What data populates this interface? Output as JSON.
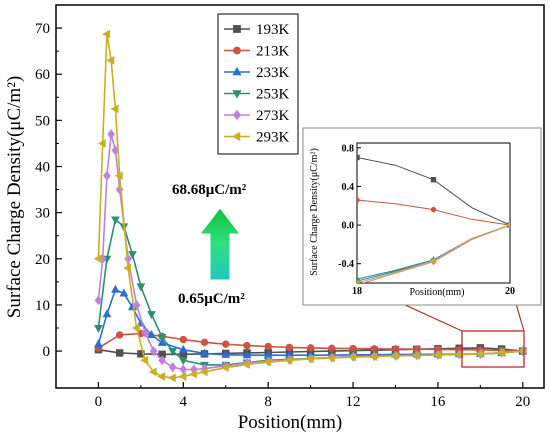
{
  "chart_data": [
    {
      "type": "line",
      "xlabel": "Position(mm)",
      "ylabel": "Surface Charge Density(μC/m²)",
      "xlim": [
        -2,
        21
      ],
      "ylim": [
        -8,
        75
      ],
      "xticks": [
        0,
        4,
        8,
        12,
        16,
        20
      ],
      "yticks": [
        0,
        10,
        20,
        30,
        40,
        50,
        60,
        70
      ],
      "legend_position": "top-center",
      "annotations": {
        "max_label": "68.68μC/m²",
        "min_label": "0.65μC/m²"
      },
      "series": [
        {
          "name": "193K",
          "color": "#505050",
          "marker": "square",
          "x": [
            0,
            1,
            2,
            3,
            4,
            5,
            6,
            7,
            8,
            9,
            10,
            11,
            12,
            13,
            14,
            15,
            16,
            17,
            18,
            19,
            20
          ],
          "y": [
            0.3,
            -0.4,
            -0.6,
            -0.7,
            -0.7,
            -0.6,
            -0.5,
            -0.4,
            -0.3,
            -0.2,
            -0.1,
            0.0,
            0.1,
            0.2,
            0.3,
            0.4,
            0.5,
            0.6,
            0.7,
            0.45,
            0
          ]
        },
        {
          "name": "213K",
          "color": "#cc5540",
          "marker": "circle",
          "x": [
            0,
            1,
            2,
            3,
            4,
            5,
            6,
            7,
            8,
            9,
            10,
            11,
            12,
            13,
            14,
            15,
            16,
            17,
            18,
            19,
            20
          ],
          "y": [
            0.65,
            3.5,
            3.8,
            3.2,
            2.5,
            1.9,
            1.5,
            1.2,
            1.0,
            0.8,
            0.7,
            0.6,
            0.55,
            0.5,
            0.45,
            0.4,
            0.35,
            0.3,
            0.25,
            0.15,
            0
          ]
        },
        {
          "name": "233K",
          "color": "#2a6ed8",
          "marker": "triangle-up",
          "x": [
            0,
            0.4,
            0.8,
            1.2,
            1.6,
            2.0,
            2.5,
            3,
            4,
            5,
            6,
            7,
            8,
            9,
            10,
            11,
            12,
            13,
            14,
            15,
            16,
            17,
            18,
            19,
            20
          ],
          "y": [
            1.5,
            8,
            13.3,
            12.5,
            9.5,
            6,
            3.5,
            1.8,
            0.3,
            -0.5,
            -0.8,
            -0.9,
            -0.9,
            -0.9,
            -0.9,
            -0.9,
            -0.8,
            -0.8,
            -0.75,
            -0.7,
            -0.7,
            -0.65,
            -0.6,
            -0.4,
            0
          ]
        },
        {
          "name": "253K",
          "color": "#2a9070",
          "marker": "triangle-down",
          "x": [
            0,
            0.4,
            0.8,
            1.2,
            1.6,
            2.0,
            2.5,
            3,
            3.5,
            4,
            5,
            6,
            7,
            8,
            9,
            10,
            11,
            12,
            13,
            14,
            15,
            16,
            17,
            18,
            19,
            20
          ],
          "y": [
            5,
            20,
            28.5,
            27,
            21,
            14,
            8,
            3,
            0,
            -2,
            -3,
            -3,
            -2.5,
            -2,
            -1.8,
            -1.6,
            -1.4,
            -1.2,
            -1.1,
            -1,
            -0.9,
            -0.8,
            -0.75,
            -0.65,
            -0.4,
            0
          ]
        },
        {
          "name": "273K",
          "color": "#c080e0",
          "marker": "diamond",
          "x": [
            0,
            0.2,
            0.4,
            0.6,
            0.8,
            1.0,
            1.4,
            1.8,
            2.2,
            2.6,
            3,
            3.5,
            4,
            4.5,
            5,
            6,
            7,
            8,
            9,
            10,
            11,
            12,
            13,
            14,
            15,
            16,
            17,
            18,
            19,
            20
          ],
          "y": [
            11,
            20,
            38,
            47,
            43.5,
            35,
            20,
            10,
            4,
            0,
            -2,
            -3.5,
            -4,
            -4,
            -3.8,
            -3.2,
            -2.6,
            -2.2,
            -1.9,
            -1.6,
            -1.4,
            -1.2,
            -1.1,
            -1,
            -0.9,
            -0.8,
            -0.7,
            -0.62,
            -0.35,
            0
          ]
        },
        {
          "name": "293K",
          "color": "#c8b020",
          "marker": "triangle-left",
          "x": [
            0,
            0.2,
            0.4,
            0.6,
            0.8,
            1.0,
            1.4,
            1.8,
            2.2,
            2.6,
            3,
            3.5,
            4,
            4.5,
            5,
            6,
            7,
            8,
            9,
            10,
            11,
            12,
            13,
            14,
            15,
            16,
            17,
            18,
            19,
            20
          ],
          "y": [
            20,
            45,
            68.68,
            63,
            52.5,
            38,
            18,
            5,
            -2,
            -4.5,
            -5.5,
            -5.8,
            -5.5,
            -5,
            -4.5,
            -3.6,
            -2.9,
            -2.4,
            -2,
            -1.7,
            -1.5,
            -1.3,
            -1.2,
            -1.05,
            -0.95,
            -0.85,
            -0.75,
            -0.62,
            -0.35,
            0
          ]
        }
      ]
    },
    {
      "type": "line",
      "role": "inset",
      "xlabel": "Position(mm)",
      "ylabel": "Surface Charge Density(μC/m²)",
      "xlim": [
        18,
        20
      ],
      "ylim": [
        -0.6,
        0.85
      ],
      "xticks": [
        18,
        20
      ],
      "yticks": [
        -0.4,
        0.0,
        0.4,
        0.8
      ],
      "series": [
        {
          "name": "193K",
          "x": [
            18,
            18.5,
            19,
            19.5,
            20
          ],
          "y": [
            0.7,
            0.62,
            0.47,
            0.18,
            0
          ]
        },
        {
          "name": "213K",
          "x": [
            18,
            18.5,
            19,
            19.5,
            20
          ],
          "y": [
            0.26,
            0.22,
            0.16,
            0.06,
            0
          ]
        },
        {
          "name": "233K",
          "x": [
            18,
            18.5,
            19,
            19.5,
            20
          ],
          "y": [
            -0.56,
            -0.47,
            -0.36,
            -0.14,
            0
          ]
        },
        {
          "name": "253K",
          "x": [
            18,
            18.5,
            19,
            19.5,
            20
          ],
          "y": [
            -0.58,
            -0.48,
            -0.37,
            -0.14,
            0
          ]
        },
        {
          "name": "273K",
          "x": [
            18,
            18.5,
            19,
            19.5,
            20
          ],
          "y": [
            -0.62,
            -0.5,
            -0.38,
            -0.15,
            0
          ]
        },
        {
          "name": "293K",
          "x": [
            18,
            18.5,
            19,
            19.5,
            20
          ],
          "y": [
            -0.6,
            -0.49,
            -0.37,
            -0.14,
            0
          ]
        }
      ]
    }
  ]
}
